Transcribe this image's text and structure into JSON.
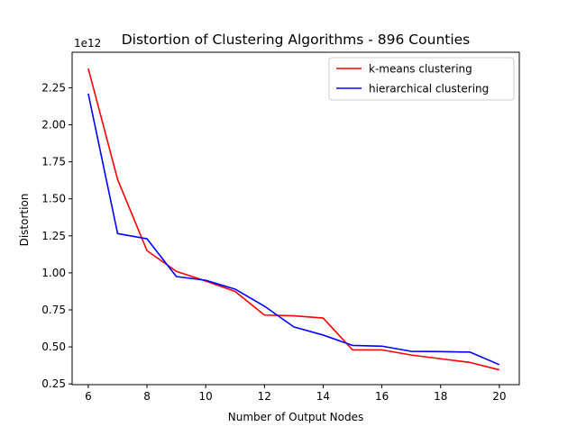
{
  "chart_data": {
    "type": "line",
    "title": "Distortion of Clustering Algorithms - 896 Counties",
    "xlabel": "Number of Output Nodes",
    "ylabel": "Distortion",
    "y_offset_label": "1e12",
    "xlim": [
      5.45,
      20.68
    ],
    "ylim": [
      0.245,
      2.49
    ],
    "x_ticks": [
      6,
      8,
      10,
      12,
      14,
      16,
      18,
      20
    ],
    "x_tick_labels": [
      "6",
      "8",
      "10",
      "12",
      "14",
      "16",
      "18",
      "20"
    ],
    "y_ticks": [
      0.25,
      0.5,
      0.75,
      1.0,
      1.25,
      1.5,
      1.75,
      2.0,
      2.25
    ],
    "y_tick_labels": [
      "0.25",
      "0.50",
      "0.75",
      "1.00",
      "1.25",
      "1.50",
      "1.75",
      "2.00",
      "2.25"
    ],
    "x": [
      6,
      7,
      8,
      9,
      10,
      11,
      12,
      13,
      14,
      15,
      16,
      17,
      18,
      19,
      20
    ],
    "series": [
      {
        "name": "k-means clustering",
        "color": "#ff0000",
        "values": [
          2.38,
          1.63,
          1.15,
          1.01,
          0.945,
          0.875,
          0.715,
          0.71,
          0.695,
          0.48,
          0.48,
          0.445,
          0.42,
          0.395,
          0.345
        ]
      },
      {
        "name": "hierarchical clustering",
        "color": "#0000ff",
        "values": [
          2.21,
          1.265,
          1.23,
          0.975,
          0.95,
          0.89,
          0.775,
          0.635,
          0.58,
          0.51,
          0.505,
          0.47,
          0.468,
          0.465,
          0.38
        ]
      }
    ],
    "grid": false,
    "legend_position": "top-right"
  }
}
